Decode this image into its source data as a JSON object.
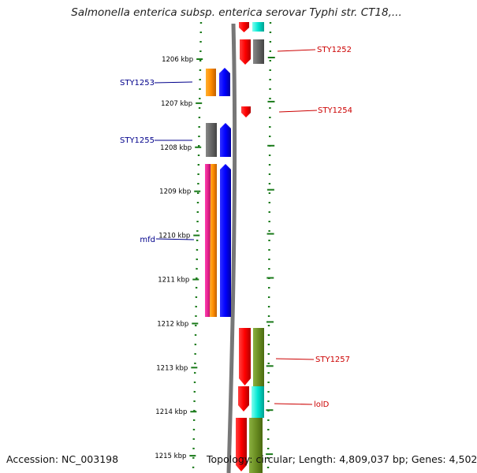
{
  "title": "Salmonella enterica subsp. enterica serovar Typhi str. CT18,...",
  "footer": {
    "accession": "Accession: NC_003198",
    "summary": "Topology: circular; Length: 4,809,037 bp; Genes: 4,502"
  },
  "ticks": [
    "1206 kbp",
    "1207 kbp",
    "1208 kbp",
    "1209 kbp",
    "1210 kbp",
    "1211 kbp",
    "1212 kbp",
    "1213 kbp",
    "1214 kbp",
    "1215 kbp"
  ],
  "gene_labels": {
    "left": [
      "STY1253",
      "STY1255",
      "mfd"
    ],
    "right": [
      "STY1252",
      "STY1254",
      "STY1257",
      "lolD"
    ]
  },
  "colors": {
    "red": "#ff0000",
    "blue": "#0000ff",
    "orange": "#ff8c00",
    "gray": "#666666",
    "magenta": "#e0218a",
    "cyan": "#00e5d0",
    "olive": "#6b8e23",
    "tick_green": "#1a7a1a",
    "label_red": "#cc0000",
    "label_blue": "#00008b"
  }
}
